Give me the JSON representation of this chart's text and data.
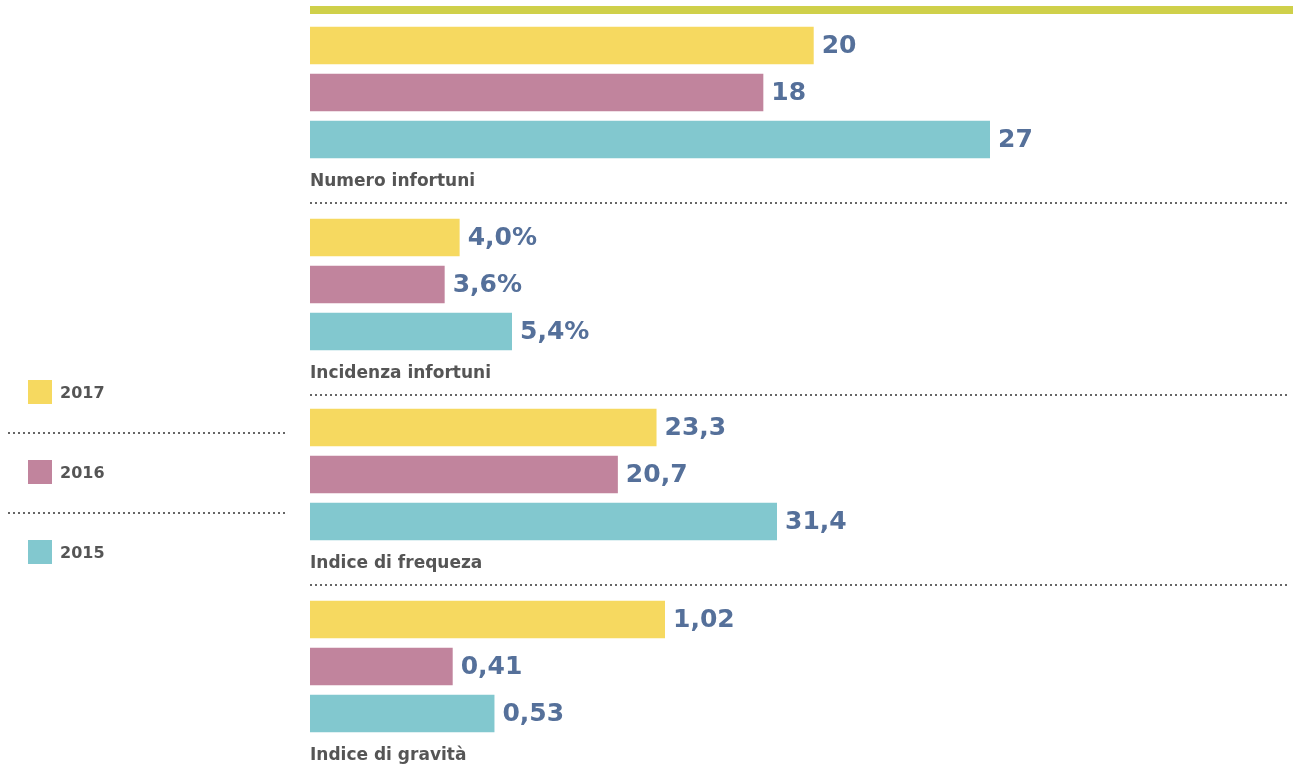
{
  "chart_data": [
    {
      "type": "bar",
      "orientation": "horizontal",
      "categories": [
        null
      ],
      "xlabel": "Numero infortuni",
      "tick_labels": false,
      "series": [
        {
          "color": "#f6d960",
          "values": [
            20
          ],
          "value_labels": [
            "20"
          ]
        },
        {
          "color": "#c1849d",
          "values": [
            18
          ],
          "value_labels": [
            "18"
          ]
        },
        {
          "color": "#82c8cf",
          "values": [
            27
          ],
          "value_labels": [
            "27"
          ]
        }
      ]
    },
    {
      "type": "bar",
      "orientation": "horizontal",
      "categories": [
        null
      ],
      "xlabel": "Incidenza infortuni",
      "tick_labels": false,
      "series": [
        {
          "color": "#f6d960",
          "values": [
            4.0
          ],
          "value_labels": [
            "4,0%"
          ]
        },
        {
          "color": "#c1849d",
          "values": [
            3.6
          ],
          "value_labels": [
            "3,6%"
          ]
        },
        {
          "color": "#82c8cf",
          "values": [
            5.4
          ],
          "value_labels": [
            "5,4%"
          ]
        }
      ]
    },
    {
      "type": "bar",
      "orientation": "horizontal",
      "categories": [
        null
      ],
      "xlabel": "Indice di frequeza",
      "tick_labels": false,
      "legend": "left",
      "series": [
        {
          "name": "2017",
          "color": "#f6d960",
          "values": [
            23.3
          ],
          "value_labels": [
            "23,3"
          ]
        },
        {
          "name": "2016",
          "color": "#c1849d",
          "values": [
            20.7
          ],
          "value_labels": [
            "20,7"
          ]
        },
        {
          "name": "2015",
          "color": "#82c8cf",
          "values": [
            31.4
          ],
          "value_labels": [
            "31,4"
          ]
        }
      ]
    },
    {
      "type": "bar",
      "orientation": "horizontal",
      "categories": [
        null
      ],
      "xlabel": "Indice di gravità",
      "tick_labels": false,
      "series": [
        {
          "color": "#f6d960",
          "values": [
            1.02
          ],
          "value_labels": [
            "1,02"
          ]
        },
        {
          "color": "#c1849d",
          "values": [
            0.41
          ],
          "value_labels": [
            "0,41"
          ]
        },
        {
          "color": "#82c8cf",
          "values": [
            0.53
          ],
          "value_labels": [
            "0,53"
          ]
        }
      ]
    }
  ]
}
